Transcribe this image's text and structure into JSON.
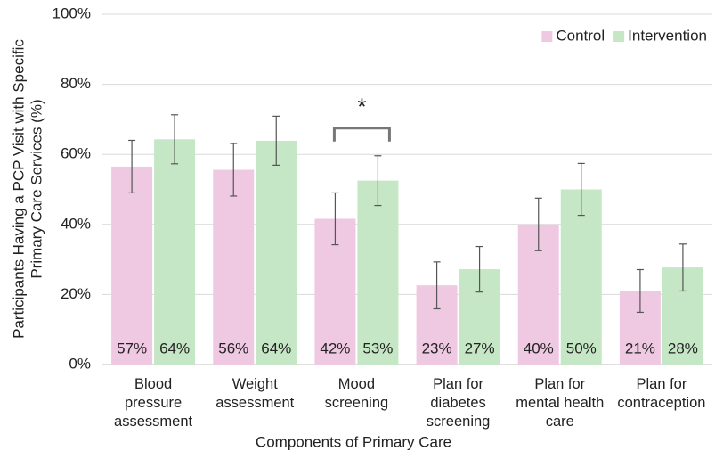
{
  "chart_data": {
    "type": "bar",
    "ylabel": [
      "Participants Having a PCP Visit with Specific",
      "Primary Care Services (%)"
    ],
    "xlabel": "Components of Primary Care",
    "categories": [
      "Blood pressure assessment",
      "Weight assessment",
      "Mood screening",
      "Plan for diabetes screening",
      "Plan for mental health care",
      "Plan for contraception"
    ],
    "series": [
      {
        "name": "Control",
        "color": "#efc9e2",
        "values": [
          56.5,
          55.6,
          41.6,
          22.6,
          40,
          21
        ],
        "value_labels": [
          "57%",
          "56%",
          "42%",
          "23%",
          "40%",
          "21%"
        ],
        "errors": [
          7.5,
          7.5,
          7.4,
          6.7,
          7.5,
          6.1
        ]
      },
      {
        "name": "Intervention",
        "color": "#c6e7c5",
        "values": [
          64.3,
          63.9,
          52.5,
          27.2,
          50,
          27.7
        ],
        "value_labels": [
          "64%",
          "64%",
          "53%",
          "27%",
          "50%",
          "28%"
        ],
        "errors": [
          7,
          7,
          7.1,
          6.5,
          7.4,
          6.7
        ]
      }
    ],
    "significance": {
      "label": "*",
      "category": "Mood screening"
    },
    "ylim": [
      0,
      100
    ],
    "yticks": [
      {
        "value": 0,
        "label": "0%"
      },
      {
        "value": 20,
        "label": "20%"
      },
      {
        "value": 40,
        "label": "40%"
      },
      {
        "value": 60,
        "label": "60%"
      },
      {
        "value": 80,
        "label": "80%"
      },
      {
        "value": 100,
        "label": "100%"
      }
    ],
    "grid": true,
    "legend": "top-right"
  }
}
